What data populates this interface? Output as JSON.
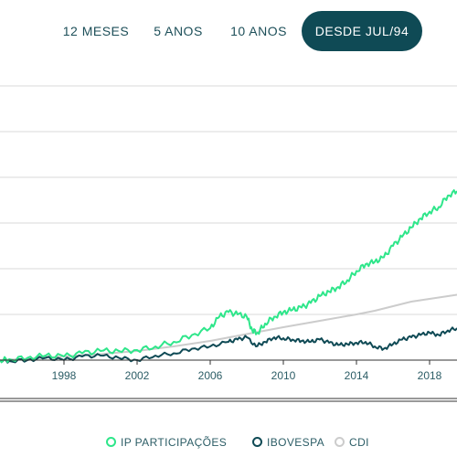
{
  "tabs": [
    {
      "label": "12 MESES",
      "active": false
    },
    {
      "label": "5 ANOS",
      "active": false
    },
    {
      "label": "10 ANOS",
      "active": false
    },
    {
      "label": "DESDE JUL/94",
      "active": true
    }
  ],
  "colors": {
    "ip": "#2ee68a",
    "ibovespa": "#0f4a55",
    "cdi": "#cccccc",
    "grid": "#d9d9d9",
    "axis": "#333333",
    "tick_text": "#2c5d66",
    "active_tab_bg": "#0f4a55"
  },
  "legend": [
    {
      "name": "IP PARTICIPAÇÕES",
      "color": "#2ee68a"
    },
    {
      "name": "IBOVESPA",
      "color": "#0f4a55"
    },
    {
      "name": "CDI",
      "color": "#cccccc"
    }
  ],
  "chart_data": {
    "type": "line",
    "title": "",
    "xlabel": "",
    "ylabel": "",
    "x_ticks": [
      "1998",
      "2002",
      "2006",
      "2010",
      "2014",
      "2018"
    ],
    "x_tick_values": [
      1998,
      2002,
      2006,
      2010,
      2014,
      2018
    ],
    "xlim": [
      1994.5,
      2019.5
    ],
    "ylim": [
      0,
      6
    ],
    "y_gridlines": [
      0,
      1,
      2,
      3,
      4,
      5,
      6
    ],
    "y_tick_labels_visible": false,
    "grid": true,
    "legend_position": "bottom",
    "series": [
      {
        "name": "IP PARTICIPAÇÕES",
        "color": "#2ee68a",
        "x": [
          1994.5,
          1995,
          1996,
          1997,
          1998,
          1999,
          2000,
          2001,
          2002,
          2003,
          2004,
          2005,
          2006,
          2006.5,
          2007,
          2007.5,
          2008,
          2008.3,
          2008.6,
          2009,
          2009.5,
          2010,
          2010.5,
          2011,
          2011.5,
          2012,
          2012.5,
          2013,
          2013.5,
          2014,
          2014.5,
          2015,
          2015.5,
          2016,
          2016.5,
          2017,
          2017.5,
          2018,
          2018.5,
          2019,
          2019.5
        ],
        "y": [
          0,
          0.02,
          0.05,
          0.1,
          0.08,
          0.15,
          0.2,
          0.2,
          0.22,
          0.3,
          0.4,
          0.55,
          0.7,
          0.95,
          1.05,
          1.0,
          0.95,
          0.65,
          0.6,
          0.8,
          0.95,
          1.05,
          1.1,
          1.15,
          1.25,
          1.4,
          1.5,
          1.6,
          1.75,
          1.95,
          2.1,
          2.15,
          2.25,
          2.5,
          2.7,
          2.9,
          3.1,
          3.25,
          3.35,
          3.6,
          3.7
        ]
      },
      {
        "name": "IBOVESPA",
        "color": "#0f4a55",
        "x": [
          1994.5,
          1995,
          1996,
          1997,
          1998,
          1999,
          2000,
          2001,
          2002,
          2003,
          2004,
          2005,
          2006,
          2007,
          2007.5,
          2008,
          2008.5,
          2009,
          2009.5,
          2010,
          2010.5,
          2011,
          2011.5,
          2012,
          2012.5,
          2013,
          2013.5,
          2014,
          2014.5,
          2015,
          2015.5,
          2016,
          2016.5,
          2017,
          2017.5,
          2018,
          2018.5,
          2019,
          2019.5
        ],
        "y": [
          0,
          -0.02,
          0.0,
          0.05,
          0.0,
          0.08,
          0.1,
          0.05,
          0.0,
          0.1,
          0.15,
          0.25,
          0.3,
          0.4,
          0.45,
          0.5,
          0.3,
          0.4,
          0.5,
          0.48,
          0.45,
          0.42,
          0.4,
          0.45,
          0.38,
          0.33,
          0.35,
          0.38,
          0.4,
          0.3,
          0.25,
          0.35,
          0.45,
          0.5,
          0.55,
          0.6,
          0.55,
          0.65,
          0.7
        ]
      },
      {
        "name": "CDI",
        "color": "#cccccc",
        "x": [
          1994.5,
          1996,
          1998,
          2000,
          2002,
          2004,
          2006,
          2008,
          2010,
          2012,
          2014,
          2015,
          2016,
          2017,
          2018,
          2019,
          2019.5
        ],
        "y": [
          0,
          0.03,
          0.08,
          0.13,
          0.2,
          0.3,
          0.42,
          0.57,
          0.72,
          0.86,
          1.0,
          1.08,
          1.18,
          1.28,
          1.34,
          1.4,
          1.43
        ]
      }
    ]
  }
}
